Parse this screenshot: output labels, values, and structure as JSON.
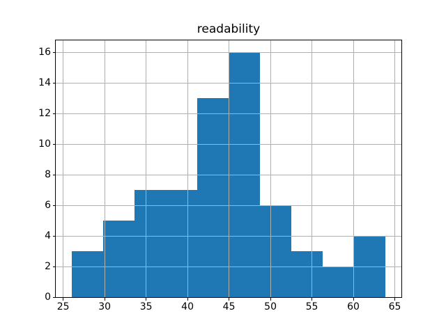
{
  "figure": {
    "background": "#ffffff"
  },
  "chart_data": {
    "type": "bar",
    "subtype": "histogram",
    "title": "readability",
    "xlabel": "",
    "ylabel": "",
    "bin_edges": [
      26.0,
      29.79,
      33.58,
      37.37,
      41.16,
      44.95,
      48.74,
      52.53,
      56.32,
      60.11,
      63.9
    ],
    "counts": [
      3,
      5,
      7,
      7,
      13,
      16,
      6,
      3,
      2,
      4
    ],
    "x_ticks": [
      25,
      30,
      35,
      40,
      45,
      50,
      55,
      60,
      65
    ],
    "y_ticks": [
      0,
      2,
      4,
      6,
      8,
      10,
      12,
      14,
      16
    ],
    "xlim": [
      24.105,
      65.795
    ],
    "ylim": [
      0,
      16.8
    ],
    "grid": true,
    "legend": null,
    "colors": {
      "bar": "#1f77b4",
      "grid": "#b0b0b0",
      "spine": "#000000",
      "text": "#000000"
    }
  }
}
